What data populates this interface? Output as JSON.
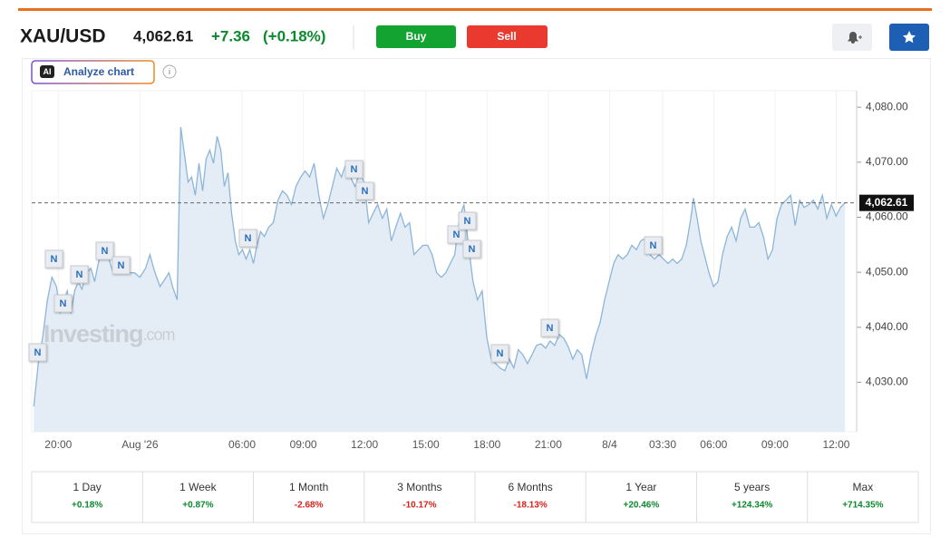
{
  "header": {
    "symbol": "XAU/USD",
    "price": "4,062.61",
    "change": "+7.36",
    "change_pct": "(+0.18%)",
    "buy": "Buy",
    "sell": "Sell"
  },
  "analyze": {
    "badge": "AI",
    "label": "Analyze chart"
  },
  "watermark": [
    "Investing",
    ".com"
  ],
  "news_label": "N",
  "chart_data": {
    "type": "line",
    "color": "#8db5d9",
    "fill": "#e4edf6",
    "grid": true,
    "current_price": {
      "value": 4062.61,
      "label": "4,062.61"
    },
    "x": [
      -1.2,
      -0.98,
      -0.76,
      -0.53,
      -0.31,
      -0.09,
      0.09,
      0.27,
      0.44,
      0.62,
      0.8,
      0.98,
      1.16,
      1.38,
      1.6,
      1.78,
      1.96,
      2.13,
      2.31,
      2.49,
      2.67,
      2.84,
      3.02,
      3.24,
      3.47,
      3.73,
      4.0,
      4.27,
      4.49,
      4.71,
      4.98,
      5.2,
      5.42,
      5.6,
      5.82,
      6.0,
      6.18,
      6.36,
      6.53,
      6.71,
      6.89,
      7.07,
      7.24,
      7.42,
      7.6,
      7.78,
      7.96,
      8.13,
      8.31,
      8.49,
      8.67,
      8.84,
      9.02,
      9.2,
      9.38,
      9.56,
      9.73,
      9.91,
      10.09,
      10.31,
      10.53,
      10.76,
      10.98,
      11.2,
      11.42,
      11.64,
      11.87,
      12.09,
      12.31,
      12.53,
      12.76,
      12.98,
      13.2,
      13.42,
      13.64,
      13.87,
      14.09,
      14.31,
      14.53,
      14.76,
      14.98,
      15.2,
      15.42,
      15.64,
      15.87,
      16.09,
      16.31,
      16.53,
      16.76,
      16.98,
      17.2,
      17.42,
      17.64,
      17.87,
      18.09,
      18.31,
      18.53,
      18.76,
      18.98,
      19.2,
      19.42,
      19.64,
      19.87,
      20.09,
      20.31,
      20.53,
      20.76,
      20.98,
      21.2,
      21.42,
      21.64,
      21.87,
      22.09,
      22.31,
      22.53,
      22.76,
      22.98,
      23.2,
      23.42,
      23.64,
      23.87,
      24.09,
      24.31,
      24.53,
      24.76,
      24.98,
      25.2,
      25.42,
      25.64,
      25.87,
      26.09,
      26.31,
      26.53,
      26.76,
      26.98,
      27.2,
      27.42,
      27.64,
      27.87,
      28.09,
      28.31,
      28.53,
      28.76,
      28.98,
      29.2,
      29.42,
      29.64,
      29.87,
      30.09,
      30.31,
      30.53,
      30.76,
      30.98,
      31.11,
      31.29,
      31.47,
      31.64,
      31.87,
      32.09,
      32.31,
      32.53,
      32.76,
      32.98,
      33.2,
      33.42,
      33.64,
      33.87,
      34.09,
      34.31,
      34.53,
      34.76,
      34.98,
      35.2,
      35.42,
      35.64,
      35.87,
      36.09,
      36.31,
      36.53,
      36.76,
      36.98,
      37.2,
      37.42,
      37.64,
      37.87,
      38.09,
      38.31,
      38.53
    ],
    "values": [
      4025.6,
      4033.4,
      4038.3,
      4045.0,
      4049.1,
      4047.4,
      4042.5,
      4045.0,
      4046.6,
      4042.5,
      4046.6,
      4048.3,
      4046.9,
      4049.9,
      4050.7,
      4048.3,
      4051.6,
      4054.1,
      4054.9,
      4052.4,
      4049.9,
      4051.6,
      4050.7,
      4051.6,
      4049.9,
      4049.9,
      4049.1,
      4050.7,
      4053.2,
      4050.2,
      4047.4,
      4048.6,
      4049.9,
      4047.4,
      4045.0,
      4076.4,
      4071.4,
      4066.4,
      4067.3,
      4064.0,
      4069.8,
      4064.8,
      4070.6,
      4072.2,
      4069.8,
      4074.7,
      4072.2,
      4065.6,
      4068.1,
      4060.7,
      4055.7,
      4053.2,
      4054.1,
      4052.4,
      4054.1,
      4051.6,
      4054.9,
      4057.4,
      4056.5,
      4058.2,
      4059.0,
      4063.1,
      4064.8,
      4064.0,
      4062.3,
      4065.6,
      4067.3,
      4068.4,
      4067.3,
      4069.8,
      4064.0,
      4059.8,
      4062.3,
      4065.6,
      4068.9,
      4067.3,
      4069.8,
      4067.3,
      4065.6,
      4068.1,
      4066.4,
      4059.0,
      4060.7,
      4062.3,
      4059.8,
      4061.5,
      4055.7,
      4058.2,
      4060.7,
      4058.2,
      4059.0,
      4053.2,
      4054.1,
      4054.9,
      4054.9,
      4053.2,
      4049.9,
      4049.1,
      4049.9,
      4051.6,
      4053.2,
      4059.8,
      4062.3,
      4054.9,
      4048.3,
      4045.0,
      4046.6,
      4038.3,
      4034.2,
      4033.4,
      4032.6,
      4032.1,
      4034.2,
      4032.6,
      4035.9,
      4035.0,
      4033.4,
      4035.0,
      4036.7,
      4037.0,
      4036.2,
      4037.5,
      4036.7,
      4038.7,
      4038.0,
      4036.4,
      4034.2,
      4035.9,
      4035.0,
      4030.6,
      4035.0,
      4038.3,
      4040.8,
      4045.0,
      4048.3,
      4051.6,
      4053.2,
      4052.4,
      4053.2,
      4054.9,
      4054.1,
      4055.7,
      4056.2,
      4053.2,
      4052.4,
      4053.2,
      4052.4,
      4051.6,
      4052.4,
      4051.6,
      4052.4,
      4054.9,
      4059.8,
      4063.5,
      4059.8,
      4055.7,
      4053.2,
      4049.9,
      4047.4,
      4048.3,
      4053.2,
      4056.5,
      4058.2,
      4055.7,
      4059.8,
      4061.5,
      4058.2,
      4058.2,
      4059.0,
      4056.5,
      4052.4,
      4054.1,
      4059.8,
      4062.3,
      4063.1,
      4064.0,
      4058.5,
      4063.1,
      4061.8,
      4062.3,
      4063.1,
      4061.5,
      4064.0,
      4059.8,
      4062.3,
      4060.2,
      4061.8,
      4062.61
    ],
    "xlim": [
      -1.3,
      39.1
    ],
    "xticks": [
      {
        "value": 0,
        "label": "20:00"
      },
      {
        "value": 4,
        "label": "Aug '26"
      },
      {
        "value": 9,
        "label": "06:00"
      },
      {
        "value": 12,
        "label": "09:00"
      },
      {
        "value": 15,
        "label": "12:00"
      },
      {
        "value": 18,
        "label": "15:00"
      },
      {
        "value": 21,
        "label": "18:00"
      },
      {
        "value": 24,
        "label": "21:00"
      },
      {
        "value": 27,
        "label": "8/4"
      },
      {
        "value": 29.6,
        "label": "03:30"
      },
      {
        "value": 32.1,
        "label": "06:00"
      },
      {
        "value": 35.1,
        "label": "09:00"
      },
      {
        "value": 38.1,
        "label": "12:00"
      }
    ],
    "ylim": [
      4021,
      4083
    ],
    "yticks": [
      {
        "value": 4030,
        "label": "4,030.00"
      },
      {
        "value": 4040,
        "label": "4,040.00"
      },
      {
        "value": 4050,
        "label": "4,050.00"
      },
      {
        "value": 4060,
        "label": "4,060.00"
      },
      {
        "value": 4070,
        "label": "4,070.00"
      },
      {
        "value": 4080,
        "label": "4,080.00"
      }
    ]
  },
  "performance": [
    {
      "label": "1 Day",
      "change": "+0.18%"
    },
    {
      "label": "1 Week",
      "change": "+0.87%"
    },
    {
      "label": "1 Month",
      "change": "-2.68%"
    },
    {
      "label": "3 Months",
      "change": "-10.17%"
    },
    {
      "label": "6 Months",
      "change": "-18.13%"
    },
    {
      "label": "1 Year",
      "change": "+20.46%"
    },
    {
      "label": "5 years",
      "change": "+124.34%"
    },
    {
      "label": "Max",
      "change": "+714.35%"
    }
  ]
}
